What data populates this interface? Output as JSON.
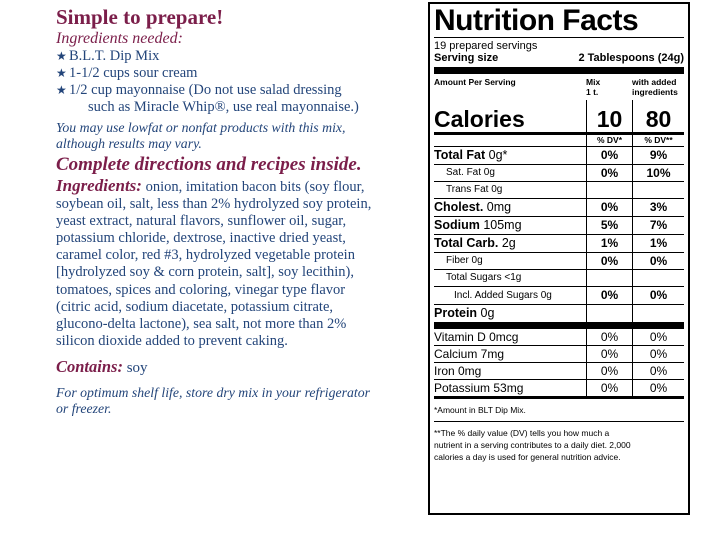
{
  "left": {
    "title": "Simple to prepare!",
    "ingredients_needed": "Ingredients needed:",
    "items": [
      "B.L.T. Dip Mix",
      "1-1/2 cups sour cream",
      "1/2 cup mayonnaise (Do not use salad dressing"
    ],
    "item3_cont": "such as Miracle Whip®, use real mayonnaise.)",
    "lowfat_note_1": "You may use lowfat or nonfat products with this mix,",
    "lowfat_note_2": "although results may vary.",
    "directions": "Complete directions and recipes inside.",
    "ingredients_label": "Ingredients:",
    "ingredients_lines": [
      " onion, imitation bacon bits (soy flour,",
      "soybean oil, salt, less than 2% hydrolyzed soy protein,",
      "yeast extract, natural flavors, sunflower oil, sugar,",
      "potassium chloride, dextrose, inactive dried yeast,",
      "caramel color, red #3, hydrolyzed vegetable protein",
      "[hydrolyzed soy & corn protein, salt], soy lecithin),",
      "tomatoes, spices and coloring, vinegar type flavor",
      "(citric acid, sodium diacetate, potassium citrate,",
      "glucono-delta lactone), sea salt, not more than 2%",
      "silicon dioxide added to prevent caking."
    ],
    "contains_label": "Contains:",
    "contains_value": "soy",
    "storage_1": "For optimum shelf life, store dry mix in your refrigerator",
    "storage_2": "or freezer."
  },
  "nutrition": {
    "title": "Nutrition Facts",
    "servings": "19 prepared servings",
    "serving_size_label": "Serving size",
    "serving_size_value": "2 Tablespoons (24g)",
    "amount_per_serving": "Amount Per Serving",
    "col1_hdr_1": "Mix",
    "col1_hdr_2": "1 t.",
    "col2_hdr_1": "with added",
    "col2_hdr_2": "ingredients",
    "calories_label": "Calories",
    "calories_mix": "10",
    "calories_added": "80",
    "dv_mix": "% DV*",
    "dv_added": "% DV**",
    "rows": [
      {
        "label_bold": "Total Fat",
        "label": " 0g*",
        "mix": "0%",
        "added": "9%"
      },
      {
        "label": "Sat. Fat 0g",
        "mix": "0%",
        "added": "10%"
      },
      {
        "label": "Trans Fat 0g",
        "mix": "",
        "added": ""
      },
      {
        "label_bold": "Cholest.",
        "label": " 0mg",
        "mix": "0%",
        "added": "3%"
      },
      {
        "label_bold": "Sodium",
        "label": " 105mg",
        "mix": "5%",
        "added": "7%"
      },
      {
        "label_bold": "Total Carb.",
        "label": " 2g",
        "mix": "1%",
        "added": "1%"
      },
      {
        "label": "Fiber 0g",
        "mix": "0%",
        "added": "0%"
      },
      {
        "label": "Total Sugars <1g",
        "mix": "",
        "added": ""
      },
      {
        "label": "Incl. Added Sugars 0g",
        "mix": "0%",
        "added": "0%"
      },
      {
        "label_bold": "Protein",
        "label": " 0g",
        "mix": "",
        "added": ""
      }
    ],
    "vitamins": [
      {
        "label": "Vitamin D 0mcg",
        "mix": "0%",
        "added": "0%"
      },
      {
        "label": "Calcium 7mg",
        "mix": "0%",
        "added": "0%"
      },
      {
        "label": "Iron 0mg",
        "mix": "0%",
        "added": "0%"
      },
      {
        "label": "Potassium 53mg",
        "mix": "0%",
        "added": "0%"
      }
    ],
    "footnote_1": "*Amount in BLT Dip Mix.",
    "footnote_2_1": "**The % daily value (DV) tells you how much a",
    "footnote_2_2": "nutrient in a serving contributes to a daily diet. 2,000",
    "footnote_2_3": "calories a day is used for general nutrition advice."
  }
}
